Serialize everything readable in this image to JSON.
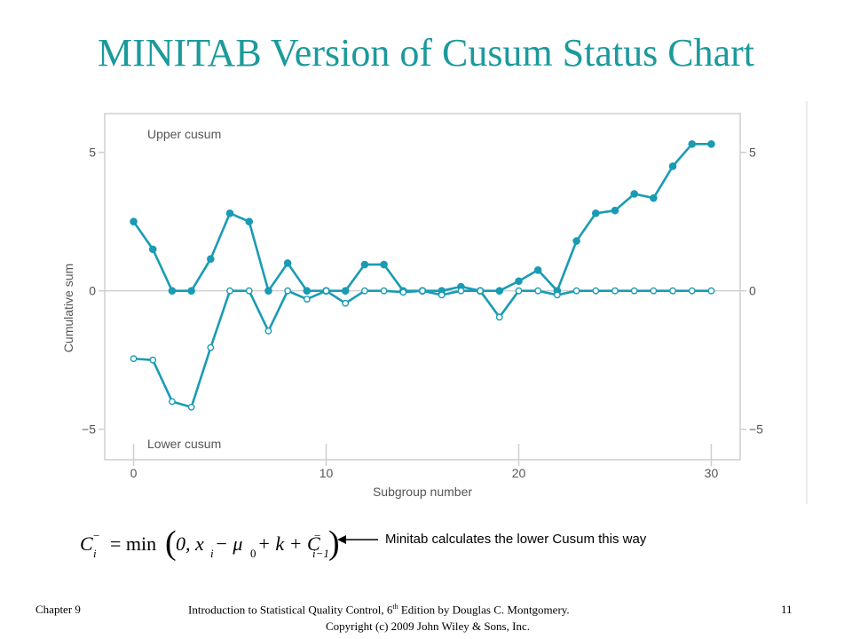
{
  "slide": {
    "title": "MINITAB Version of Cusum Status Chart",
    "note": "Minitab calculates the lower Cusum this way",
    "formula": {
      "lhs": "C",
      "lhs_sub": "i",
      "lhs_sup": "−",
      "eq": "= min",
      "body_a": "0, x",
      "body_sub1": "i",
      "body_b": " − μ",
      "body_sub2": "0",
      "body_c": " + k + C",
      "body_sup3": "−",
      "body_sub3": "i−1"
    },
    "footer": {
      "chapter": "Chapter 9",
      "book_pre": "Introduction to Statistical Quality Control, 6",
      "book_sup": "th",
      "book_post": " Edition by Douglas C. Montgomery.",
      "copyright": "Copyright (c) 2009  John Wiley & Sons, Inc.",
      "page": "11"
    }
  },
  "colors": {
    "title": "#1b9a9c",
    "series": "#1a9bb4",
    "frame": "#cfcfcf",
    "text": "#555555"
  },
  "chart_data": {
    "type": "line",
    "xlabel": "Subgroup number",
    "ylabel": "Cumulative sum",
    "xlim": [
      -1.5,
      31.5
    ],
    "ylim": [
      -6.1,
      6.4
    ],
    "xticks": [
      0,
      10,
      20,
      30
    ],
    "yticks": [
      5,
      0,
      -5
    ],
    "ytick_labels": [
      "5",
      "0",
      "−5"
    ],
    "grid": false,
    "annotations": [
      "Upper cusum",
      "Lower cusum"
    ],
    "x": [
      0,
      1,
      2,
      3,
      4,
      5,
      6,
      7,
      8,
      9,
      10,
      11,
      12,
      13,
      14,
      15,
      16,
      17,
      18,
      19,
      20,
      21,
      22,
      23,
      24,
      25,
      26,
      27,
      28,
      29,
      30
    ],
    "series": [
      {
        "marker": "filled",
        "values": [
          2.5,
          1.5,
          0,
          0,
          1.15,
          2.8,
          2.5,
          0,
          1.0,
          0,
          0,
          0,
          0.95,
          0.95,
          0,
          0,
          0,
          0.15,
          0,
          0,
          0.35,
          0.75,
          0,
          1.8,
          2.8,
          2.9,
          3.5,
          3.35,
          4.5,
          5.3,
          5.3
        ]
      },
      {
        "marker": "open",
        "values": [
          -2.45,
          -2.5,
          -4.0,
          -4.2,
          -2.05,
          0,
          0,
          -1.45,
          0,
          -0.3,
          0,
          -0.45,
          0,
          0,
          -0.05,
          0,
          -0.15,
          0,
          0,
          -0.95,
          0,
          0,
          -0.15,
          0,
          0,
          0,
          0,
          0,
          0,
          0,
          0
        ]
      }
    ]
  }
}
